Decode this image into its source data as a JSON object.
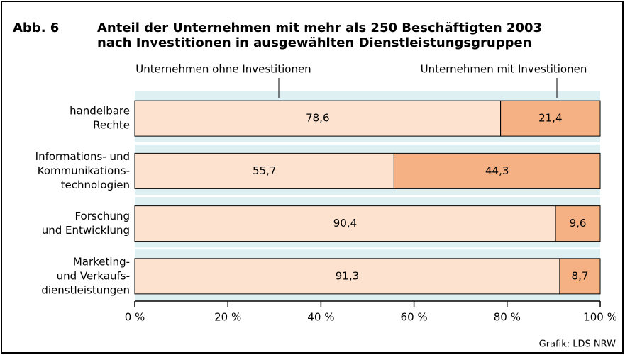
{
  "chart_data": {
    "type": "stacked-barh",
    "figure_label": "Abb. 6",
    "title": [
      "Anteil der Unternehmen mit mehr als 250 Beschäftigten 2003",
      "nach Investitionen in ausgewählten Dienstleistungsgruppen"
    ],
    "categories": [
      [
        "handelbare",
        "Rechte"
      ],
      [
        "Informations- und",
        "Kommunikations-",
        "technologien"
      ],
      [
        "Forschung",
        "und Entwicklung"
      ],
      [
        "Marketing-",
        "und Verkaufs-",
        "dienstleistungen"
      ]
    ],
    "series": [
      {
        "name": "Unternehmen ohne Investitionen",
        "color": "#fde3cf",
        "values": [
          78.6,
          55.7,
          90.4,
          91.3
        ],
        "value_labels": [
          "78,6",
          "55,7",
          "90,4",
          "91,3"
        ]
      },
      {
        "name": "Unternehmen mit Investitionen",
        "color": "#f5b183",
        "values": [
          21.4,
          44.3,
          9.6,
          8.7
        ],
        "value_labels": [
          "21,4",
          "44,3",
          "9,6",
          "8,7"
        ]
      }
    ],
    "xlim": [
      0,
      100
    ],
    "xticks": [
      {
        "value": 0,
        "label": "0 %"
      },
      {
        "value": 20,
        "label": "20 %"
      },
      {
        "value": 40,
        "label": "40 %"
      },
      {
        "value": 60,
        "label": "60 %"
      },
      {
        "value": 80,
        "label": "80 %"
      },
      {
        "value": 100,
        "label": "100 %"
      }
    ],
    "source": "Grafik: LDS NRW"
  }
}
